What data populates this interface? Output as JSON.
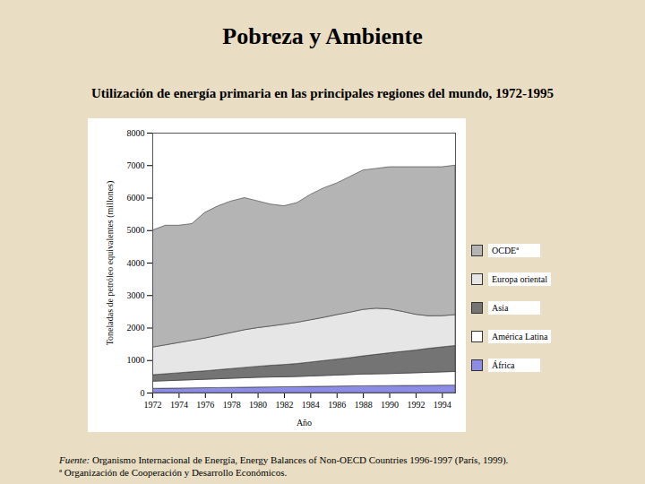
{
  "chart_data": {
    "type": "area",
    "stacked": true,
    "title": "Pobreza y Ambiente",
    "subtitle": "Utilización de energía primaria en las principales regiones del mundo, 1972-1995",
    "xlabel": "Año",
    "ylabel": "Toneladas de petróleo equivalentes (millones)",
    "x": [
      1972,
      1973,
      1974,
      1975,
      1976,
      1977,
      1978,
      1979,
      1980,
      1981,
      1982,
      1983,
      1984,
      1985,
      1986,
      1987,
      1988,
      1989,
      1990,
      1991,
      1992,
      1993,
      1994,
      1995
    ],
    "xlim": [
      1972,
      1995
    ],
    "xticks": [
      1972,
      1974,
      1976,
      1978,
      1980,
      1982,
      1984,
      1986,
      1988,
      1990,
      1992,
      1994
    ],
    "ylim": [
      0,
      8000
    ],
    "yticks": [
      0,
      1000,
      2000,
      3000,
      4000,
      5000,
      6000,
      7000,
      8000
    ],
    "grid": false,
    "legend": "right",
    "series": [
      {
        "name": "OCDEª",
        "color": "#b4b4b4",
        "values": [
          3600,
          3680,
          3610,
          3590,
          3870,
          3985,
          4050,
          4065,
          3900,
          3750,
          3645,
          3685,
          3860,
          3985,
          4050,
          4175,
          4290,
          4303,
          4375,
          4452,
          4540,
          4586,
          4583,
          4600
        ]
      },
      {
        "name": "Europa oriental",
        "color": "#e6e6e6",
        "values": [
          850,
          890,
          930,
          970,
          1010,
          1060,
          1110,
          1160,
          1190,
          1210,
          1240,
          1270,
          1300,
          1330,
          1370,
          1400,
          1430,
          1420,
          1350,
          1230,
          1100,
          1000,
          960,
          950
        ]
      },
      {
        "name": "Asia",
        "color": "#747474",
        "values": [
          200,
          215,
          230,
          245,
          260,
          280,
          300,
          320,
          340,
          360,
          380,
          400,
          430,
          460,
          490,
          520,
          560,
          600,
          640,
          670,
          700,
          740,
          770,
          800
        ]
      },
      {
        "name": "América Latina",
        "color": "#ffffff",
        "values": [
          220,
          230,
          240,
          250,
          260,
          270,
          280,
          290,
          300,
          305,
          305,
          310,
          320,
          330,
          340,
          350,
          360,
          365,
          370,
          380,
          390,
          400,
          410,
          420
        ]
      },
      {
        "name": "África",
        "color": "#8c8ce6",
        "values": [
          130,
          135,
          140,
          145,
          150,
          155,
          160,
          165,
          170,
          175,
          180,
          185,
          190,
          195,
          200,
          205,
          210,
          212,
          215,
          218,
          220,
          224,
          227,
          230
        ]
      }
    ],
    "source_label": "Fuente:",
    "source_text": "Organismo Internacional de Energía, Energy Balances of Non-OECD Countries 1996-1997 (París, 1999).",
    "footnote": "ª Organización de Cooperación y Desarrollo Económicos."
  }
}
